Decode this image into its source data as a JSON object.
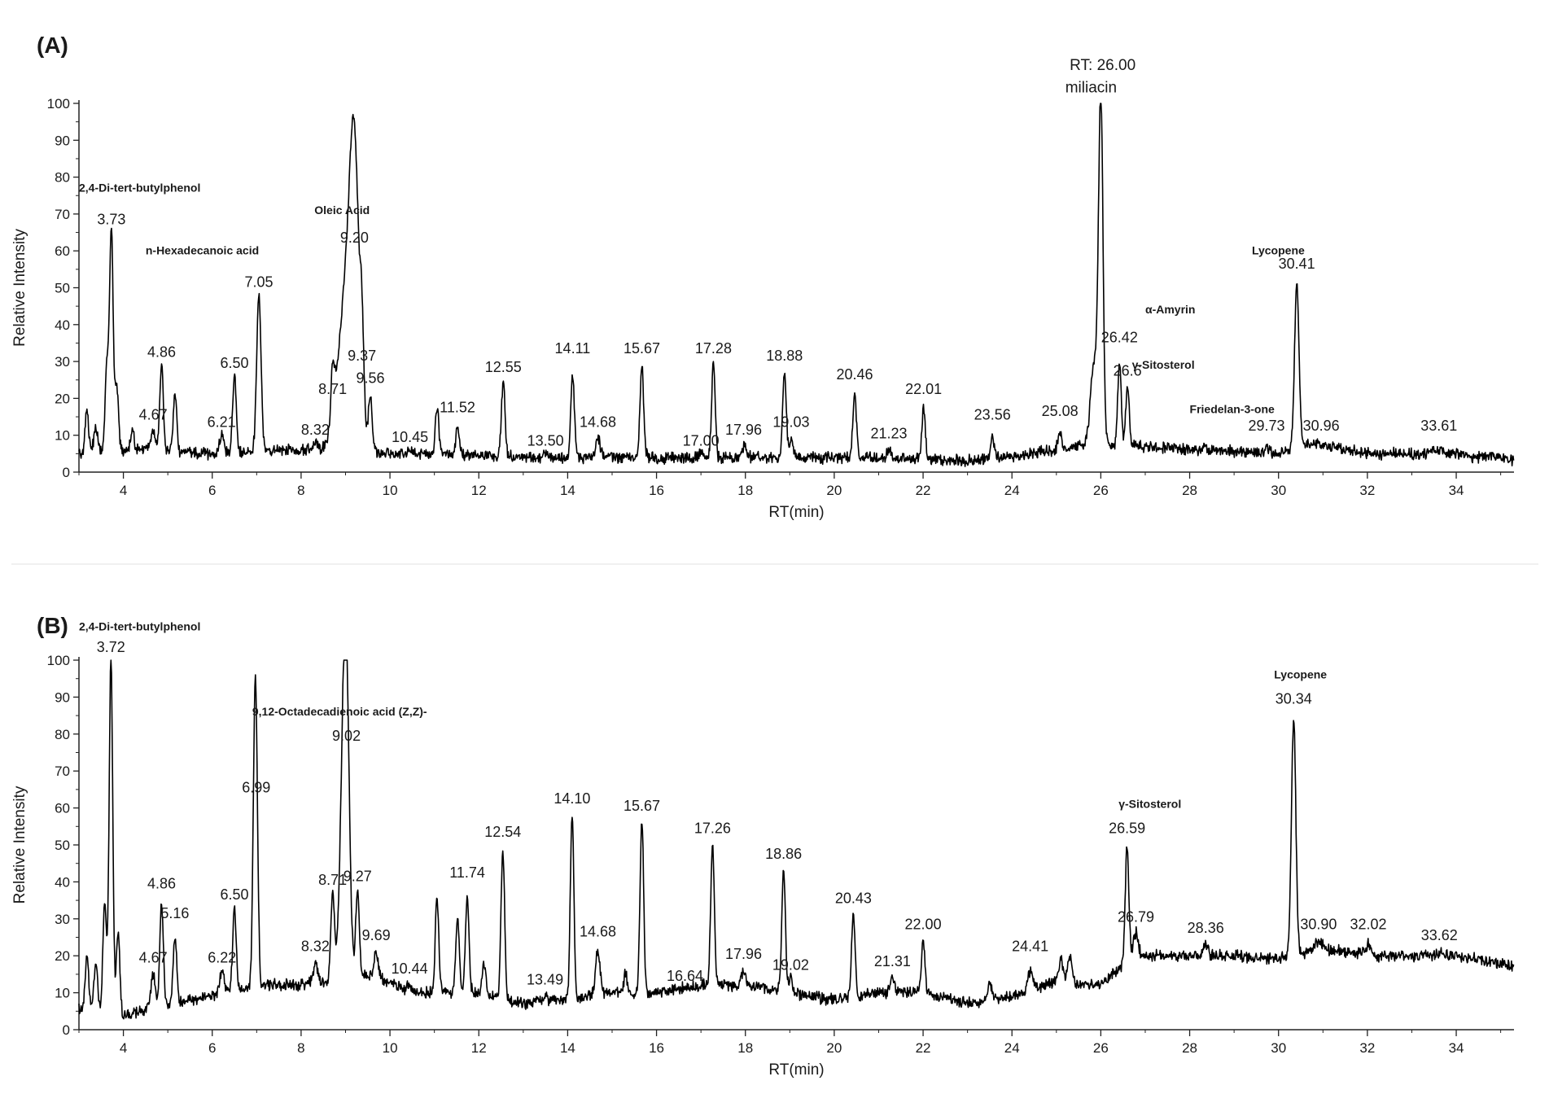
{
  "chart_data": [
    {
      "type": "line",
      "panel_label": "(A)",
      "xlabel": "RT(min)",
      "ylabel": "Relative Intensity",
      "xlim": [
        3,
        35.3
      ],
      "ylim": [
        0,
        100
      ],
      "x_ticks": [
        4,
        6,
        8,
        10,
        12,
        14,
        16,
        18,
        20,
        22,
        24,
        26,
        28,
        30,
        32,
        34
      ],
      "y_ticks": [
        0,
        10,
        20,
        30,
        40,
        50,
        60,
        70,
        80,
        90,
        100
      ],
      "grid": false,
      "color": "#000000",
      "baseline": [
        [
          3.0,
          5
        ],
        [
          4.5,
          6
        ],
        [
          6.0,
          5
        ],
        [
          8.0,
          6
        ],
        [
          9.6,
          5
        ],
        [
          11.0,
          5
        ],
        [
          13.0,
          4
        ],
        [
          15.0,
          4
        ],
        [
          17.0,
          4
        ],
        [
          19.0,
          4
        ],
        [
          21.0,
          4
        ],
        [
          23.0,
          3
        ],
        [
          24.2,
          4.5
        ],
        [
          25.5,
          7
        ],
        [
          26.8,
          7
        ],
        [
          28.5,
          6
        ],
        [
          30.0,
          5
        ],
        [
          30.8,
          8
        ],
        [
          32.0,
          5
        ],
        [
          33.6,
          5
        ],
        [
          35.3,
          3.5
        ]
      ],
      "peaks": [
        {
          "rt": 3.18,
          "height": 17,
          "width": 0.04
        },
        {
          "rt": 3.38,
          "height": 13,
          "width": 0.04
        },
        {
          "rt": 3.63,
          "height": 29,
          "width": 0.04
        },
        {
          "rt": 3.73,
          "height": 65,
          "width": 0.04
        },
        {
          "rt": 3.85,
          "height": 23,
          "width": 0.04
        },
        {
          "rt": 4.2,
          "height": 11,
          "width": 0.04
        },
        {
          "rt": 4.67,
          "height": 12,
          "width": 0.05
        },
        {
          "rt": 4.86,
          "height": 29,
          "width": 0.04
        },
        {
          "rt": 5.16,
          "height": 21,
          "width": 0.04
        },
        {
          "rt": 6.21,
          "height": 10,
          "width": 0.05
        },
        {
          "rt": 6.5,
          "height": 26,
          "width": 0.04
        },
        {
          "rt": 7.05,
          "height": 48,
          "width": 0.05
        },
        {
          "rt": 8.32,
          "height": 8,
          "width": 0.05
        },
        {
          "rt": 8.71,
          "height": 19,
          "width": 0.04
        },
        {
          "rt": 9.05,
          "height": 52,
          "width": 0.2
        },
        {
          "rt": 9.2,
          "height": 60,
          "width": 0.1
        },
        {
          "rt": 9.37,
          "height": 24,
          "width": 0.04
        },
        {
          "rt": 9.56,
          "height": 19,
          "width": 0.04
        },
        {
          "rt": 10.45,
          "height": 6,
          "width": 0.05
        },
        {
          "rt": 11.06,
          "height": 17,
          "width": 0.04
        },
        {
          "rt": 11.52,
          "height": 12,
          "width": 0.04
        },
        {
          "rt": 12.55,
          "height": 25,
          "width": 0.04
        },
        {
          "rt": 13.5,
          "height": 5,
          "width": 0.05
        },
        {
          "rt": 14.11,
          "height": 26,
          "width": 0.04
        },
        {
          "rt": 14.68,
          "height": 9,
          "width": 0.05
        },
        {
          "rt": 15.67,
          "height": 29,
          "width": 0.04
        },
        {
          "rt": 17.0,
          "height": 5,
          "width": 0.05
        },
        {
          "rt": 17.28,
          "height": 29,
          "width": 0.04
        },
        {
          "rt": 17.96,
          "height": 7,
          "width": 0.05
        },
        {
          "rt": 18.88,
          "height": 27,
          "width": 0.04
        },
        {
          "rt": 19.03,
          "height": 9,
          "width": 0.04
        },
        {
          "rt": 20.46,
          "height": 21,
          "width": 0.04
        },
        {
          "rt": 21.23,
          "height": 6,
          "width": 0.05
        },
        {
          "rt": 22.01,
          "height": 17,
          "width": 0.04
        },
        {
          "rt": 23.56,
          "height": 9,
          "width": 0.04
        },
        {
          "rt": 25.08,
          "height": 11,
          "width": 0.04
        },
        {
          "rt": 25.85,
          "height": 30,
          "width": 0.08
        },
        {
          "rt": 26.0,
          "height": 100,
          "width": 0.05
        },
        {
          "rt": 26.42,
          "height": 30,
          "width": 0.04
        },
        {
          "rt": 26.6,
          "height": 23,
          "width": 0.04
        },
        {
          "rt": 28.35,
          "height": 7,
          "width": 0.04
        },
        {
          "rt": 29.73,
          "height": 7,
          "width": 0.05
        },
        {
          "rt": 30.41,
          "height": 51,
          "width": 0.05
        },
        {
          "rt": 30.96,
          "height": 7,
          "width": 0.06
        },
        {
          "rt": 33.61,
          "height": 6,
          "width": 0.1
        }
      ],
      "peak_labels": [
        {
          "rt": 3.73,
          "text": "3.73",
          "y": 65
        },
        {
          "rt": 4.67,
          "text": "4.67",
          "y": 12
        },
        {
          "rt": 4.86,
          "text": "4.86",
          "y": 29
        },
        {
          "rt": 6.21,
          "text": "6.21",
          "y": 10
        },
        {
          "rt": 6.5,
          "text": "6.50",
          "y": 26
        },
        {
          "rt": 7.05,
          "text": "7.05",
          "y": 48
        },
        {
          "rt": 8.32,
          "text": "8.32",
          "y": 8
        },
        {
          "rt": 8.71,
          "text": "8.71",
          "y": 19
        },
        {
          "rt": 9.2,
          "text": "9.20",
          "y": 60
        },
        {
          "rt": 9.37,
          "text": "9.37",
          "y": 28
        },
        {
          "rt": 9.56,
          "text": "9.56",
          "y": 22
        },
        {
          "rt": 10.45,
          "text": "10.45",
          "y": 6
        },
        {
          "rt": 11.52,
          "text": "11.52",
          "y": 14
        },
        {
          "rt": 12.55,
          "text": "12.55",
          "y": 25
        },
        {
          "rt": 13.5,
          "text": "13.50",
          "y": 5
        },
        {
          "rt": 14.11,
          "text": "14.11",
          "y": 30
        },
        {
          "rt": 14.68,
          "text": "14.68",
          "y": 10
        },
        {
          "rt": 15.67,
          "text": "15.67",
          "y": 30
        },
        {
          "rt": 17.0,
          "text": "17.00",
          "y": 5
        },
        {
          "rt": 17.28,
          "text": "17.28",
          "y": 30
        },
        {
          "rt": 17.96,
          "text": "17.96",
          "y": 8
        },
        {
          "rt": 18.88,
          "text": "18.88",
          "y": 28
        },
        {
          "rt": 19.03,
          "text": "19.03",
          "y": 10
        },
        {
          "rt": 20.46,
          "text": "20.46",
          "y": 23
        },
        {
          "rt": 21.23,
          "text": "21.23",
          "y": 7
        },
        {
          "rt": 22.01,
          "text": "22.01",
          "y": 19
        },
        {
          "rt": 23.56,
          "text": "23.56",
          "y": 12
        },
        {
          "rt": 25.08,
          "text": "25.08",
          "y": 13
        },
        {
          "rt": 26.42,
          "text": "26.42",
          "y": 33
        },
        {
          "rt": 26.6,
          "text": "26.6",
          "y": 24
        },
        {
          "rt": 29.73,
          "text": "29.73",
          "y": 9
        },
        {
          "rt": 30.41,
          "text": "30.41",
          "y": 53
        },
        {
          "rt": 30.96,
          "text": "30.96",
          "y": 9
        },
        {
          "rt": 33.61,
          "text": "33.61",
          "y": 9
        }
      ],
      "annotations": [
        {
          "text": "2,4-Di-tert-butylphenol",
          "rt": 3.0,
          "y": 76
        },
        {
          "text": "n-Hexadecanoic acid",
          "rt": 4.5,
          "y": 59
        },
        {
          "text": "Oleic Acid",
          "rt": 8.3,
          "y": 70
        },
        {
          "text": "RT: 26.00",
          "rt": 25.3,
          "y": 109
        },
        {
          "text": "miliacin",
          "rt": 25.2,
          "y": 103
        },
        {
          "text": "α-Amyrin",
          "rt": 27.0,
          "y": 43
        },
        {
          "text": "γ-Sitosterol",
          "rt": 26.7,
          "y": 28
        },
        {
          "text": "Friedelan-3-one",
          "rt": 28.0,
          "y": 16
        },
        {
          "text": "Lycopene",
          "rt": 29.4,
          "y": 59
        }
      ]
    },
    {
      "type": "line",
      "panel_label": "(B)",
      "xlabel": "RT(min)",
      "ylabel": "Relative Intensity",
      "xlim": [
        3,
        35.3
      ],
      "ylim": [
        0,
        100
      ],
      "x_ticks": [
        4,
        6,
        8,
        10,
        12,
        14,
        16,
        18,
        20,
        22,
        24,
        26,
        28,
        30,
        32,
        34
      ],
      "y_ticks": [
        0,
        10,
        20,
        30,
        40,
        50,
        60,
        70,
        80,
        90,
        100
      ],
      "grid": false,
      "color": "#000000",
      "baseline": [
        [
          3.0,
          6
        ],
        [
          4.0,
          4
        ],
        [
          5.5,
          8
        ],
        [
          7.0,
          12
        ],
        [
          8.0,
          12
        ],
        [
          9.6,
          15
        ],
        [
          10.5,
          10
        ],
        [
          12.0,
          10
        ],
        [
          13.0,
          7
        ],
        [
          14.0,
          8
        ],
        [
          15.0,
          10
        ],
        [
          16.0,
          10
        ],
        [
          17.0,
          12
        ],
        [
          18.0,
          12
        ],
        [
          19.0,
          10
        ],
        [
          20.0,
          8
        ],
        [
          21.0,
          10
        ],
        [
          22.0,
          10
        ],
        [
          23.0,
          7
        ],
        [
          24.0,
          9
        ],
        [
          25.0,
          13
        ],
        [
          26.0,
          12
        ],
        [
          26.7,
          20
        ],
        [
          27.5,
          20
        ],
        [
          29.0,
          20
        ],
        [
          30.0,
          19
        ],
        [
          31.0,
          22
        ],
        [
          32.0,
          20
        ],
        [
          34.0,
          20
        ],
        [
          35.3,
          17
        ]
      ],
      "peaks": [
        {
          "rt": 3.18,
          "height": 20,
          "width": 0.04
        },
        {
          "rt": 3.38,
          "height": 18,
          "width": 0.04
        },
        {
          "rt": 3.58,
          "height": 34,
          "width": 0.04
        },
        {
          "rt": 3.72,
          "height": 100,
          "width": 0.04
        },
        {
          "rt": 3.88,
          "height": 26,
          "width": 0.04
        },
        {
          "rt": 4.67,
          "height": 15,
          "width": 0.05
        },
        {
          "rt": 4.86,
          "height": 34,
          "width": 0.04
        },
        {
          "rt": 5.16,
          "height": 25,
          "width": 0.04
        },
        {
          "rt": 6.22,
          "height": 16,
          "width": 0.05
        },
        {
          "rt": 6.5,
          "height": 33,
          "width": 0.04
        },
        {
          "rt": 6.95,
          "height": 56,
          "width": 0.04
        },
        {
          "rt": 6.99,
          "height": 62,
          "width": 0.04
        },
        {
          "rt": 8.32,
          "height": 18,
          "width": 0.05
        },
        {
          "rt": 8.71,
          "height": 37,
          "width": 0.04
        },
        {
          "rt": 8.95,
          "height": 60,
          "width": 0.08
        },
        {
          "rt": 9.02,
          "height": 76,
          "width": 0.07
        },
        {
          "rt": 9.27,
          "height": 37,
          "width": 0.04
        },
        {
          "rt": 9.69,
          "height": 21,
          "width": 0.04
        },
        {
          "rt": 10.44,
          "height": 12,
          "width": 0.05
        },
        {
          "rt": 11.06,
          "height": 36,
          "width": 0.04
        },
        {
          "rt": 11.52,
          "height": 30,
          "width": 0.04
        },
        {
          "rt": 11.74,
          "height": 36,
          "width": 0.04
        },
        {
          "rt": 12.12,
          "height": 18,
          "width": 0.04
        },
        {
          "rt": 12.54,
          "height": 49,
          "width": 0.04
        },
        {
          "rt": 13.49,
          "height": 9,
          "width": 0.05
        },
        {
          "rt": 14.1,
          "height": 58,
          "width": 0.04
        },
        {
          "rt": 14.68,
          "height": 22,
          "width": 0.05
        },
        {
          "rt": 15.3,
          "height": 15,
          "width": 0.04
        },
        {
          "rt": 15.67,
          "height": 56,
          "width": 0.04
        },
        {
          "rt": 16.64,
          "height": 9,
          "width": 0.05
        },
        {
          "rt": 17.26,
          "height": 50,
          "width": 0.04
        },
        {
          "rt": 17.96,
          "height": 16,
          "width": 0.05
        },
        {
          "rt": 18.86,
          "height": 43,
          "width": 0.04
        },
        {
          "rt": 19.02,
          "height": 14,
          "width": 0.04
        },
        {
          "rt": 20.43,
          "height": 31,
          "width": 0.04
        },
        {
          "rt": 21.31,
          "height": 14,
          "width": 0.05
        },
        {
          "rt": 22.0,
          "height": 24,
          "width": 0.04
        },
        {
          "rt": 23.5,
          "height": 13,
          "width": 0.04
        },
        {
          "rt": 24.41,
          "height": 16,
          "width": 0.06
        },
        {
          "rt": 25.1,
          "height": 19,
          "width": 0.05
        },
        {
          "rt": 25.3,
          "height": 20,
          "width": 0.05
        },
        {
          "rt": 26.59,
          "height": 49,
          "width": 0.04
        },
        {
          "rt": 26.79,
          "height": 26,
          "width": 0.05
        },
        {
          "rt": 28.36,
          "height": 23,
          "width": 0.05
        },
        {
          "rt": 30.34,
          "height": 84,
          "width": 0.05
        },
        {
          "rt": 30.9,
          "height": 24,
          "width": 0.08
        },
        {
          "rt": 32.02,
          "height": 23,
          "width": 0.08
        },
        {
          "rt": 33.62,
          "height": 21,
          "width": 0.1
        }
      ],
      "peak_labels": [
        {
          "rt": 3.72,
          "text": "3.72",
          "y": 100
        },
        {
          "rt": 4.67,
          "text": "4.67",
          "y": 16
        },
        {
          "rt": 4.86,
          "text": "4.86",
          "y": 36
        },
        {
          "rt": 5.16,
          "text": "5.16",
          "y": 28
        },
        {
          "rt": 6.22,
          "text": "6.22",
          "y": 16
        },
        {
          "rt": 6.5,
          "text": "6.50",
          "y": 33
        },
        {
          "rt": 6.99,
          "text": "6.99",
          "y": 62
        },
        {
          "rt": 8.32,
          "text": "8.32",
          "y": 19
        },
        {
          "rt": 8.71,
          "text": "8.71",
          "y": 37
        },
        {
          "rt": 9.02,
          "text": "9.02",
          "y": 76
        },
        {
          "rt": 9.27,
          "text": "9.27",
          "y": 38
        },
        {
          "rt": 9.69,
          "text": "9.69",
          "y": 22
        },
        {
          "rt": 10.44,
          "text": "10.44",
          "y": 13
        },
        {
          "rt": 11.74,
          "text": "11.74",
          "y": 39
        },
        {
          "rt": 12.54,
          "text": "12.54",
          "y": 50
        },
        {
          "rt": 13.49,
          "text": "13.49",
          "y": 10
        },
        {
          "rt": 14.1,
          "text": "14.10",
          "y": 59
        },
        {
          "rt": 14.68,
          "text": "14.68",
          "y": 23
        },
        {
          "rt": 15.67,
          "text": "15.67",
          "y": 57
        },
        {
          "rt": 16.64,
          "text": "16.64",
          "y": 11
        },
        {
          "rt": 17.26,
          "text": "17.26",
          "y": 51
        },
        {
          "rt": 17.96,
          "text": "17.96",
          "y": 17
        },
        {
          "rt": 18.86,
          "text": "18.86",
          "y": 44
        },
        {
          "rt": 19.02,
          "text": "19.02",
          "y": 14
        },
        {
          "rt": 20.43,
          "text": "20.43",
          "y": 32
        },
        {
          "rt": 21.31,
          "text": "21.31",
          "y": 15
        },
        {
          "rt": 22.0,
          "text": "22.00",
          "y": 25
        },
        {
          "rt": 24.41,
          "text": "24.41",
          "y": 19
        },
        {
          "rt": 26.59,
          "text": "26.59",
          "y": 51
        },
        {
          "rt": 26.79,
          "text": "26.79",
          "y": 27
        },
        {
          "rt": 28.36,
          "text": "28.36",
          "y": 24
        },
        {
          "rt": 30.34,
          "text": "30.34",
          "y": 86
        },
        {
          "rt": 30.9,
          "text": "30.90",
          "y": 25
        },
        {
          "rt": 32.02,
          "text": "32.02",
          "y": 25
        },
        {
          "rt": 33.62,
          "text": "33.62",
          "y": 22
        }
      ],
      "annotations": [
        {
          "text": "2,4-Di-tert-butylphenol",
          "rt": 3.0,
          "y": 108
        },
        {
          "text": "9,12-Octadecadienoic acid (Z,Z)-",
          "rt": 6.9,
          "y": 85
        },
        {
          "text": "γ-Sitosterol",
          "rt": 26.4,
          "y": 60
        },
        {
          "text": "Lycopene",
          "rt": 29.9,
          "y": 95
        }
      ]
    }
  ]
}
